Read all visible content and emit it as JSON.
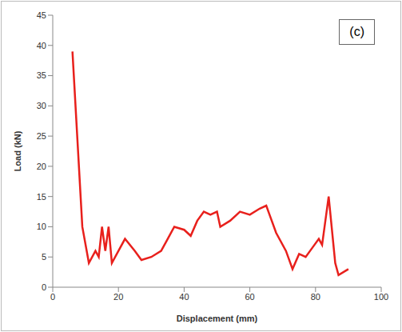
{
  "chart_data": {
    "type": "line",
    "annotation": "(c)",
    "x_label": "Displacement (mm)",
    "y_label": "Load (kN)",
    "x": [
      6,
      9,
      11,
      13,
      14,
      15,
      16,
      17,
      18,
      20,
      22,
      25,
      27,
      30,
      33,
      35,
      37,
      40,
      42,
      44,
      46,
      48,
      50,
      51,
      54,
      57,
      60,
      63,
      65,
      66,
      68,
      71,
      73,
      75,
      77,
      79,
      81,
      82,
      84,
      86,
      87,
      90
    ],
    "values": [
      39,
      10,
      4,
      6,
      5,
      10,
      6,
      10,
      4,
      6,
      8,
      6,
      4.5,
      5,
      6,
      8,
      10,
      9.5,
      8.5,
      11,
      12.5,
      12,
      12.5,
      10,
      11,
      12.5,
      12,
      13,
      13.5,
      12,
      9,
      6,
      3,
      5.5,
      5,
      6.5,
      8,
      7,
      15,
      4,
      2,
      3
    ],
    "color": "#e8201c",
    "line_style": "solid",
    "marker": "none",
    "xlim": [
      0,
      100
    ],
    "xticks": [
      0,
      20,
      40,
      60,
      80,
      100
    ],
    "ylim": [
      0,
      45
    ],
    "yticks": [
      0,
      5,
      10,
      15,
      20,
      25,
      30,
      35,
      40,
      45
    ],
    "grid": false
  }
}
